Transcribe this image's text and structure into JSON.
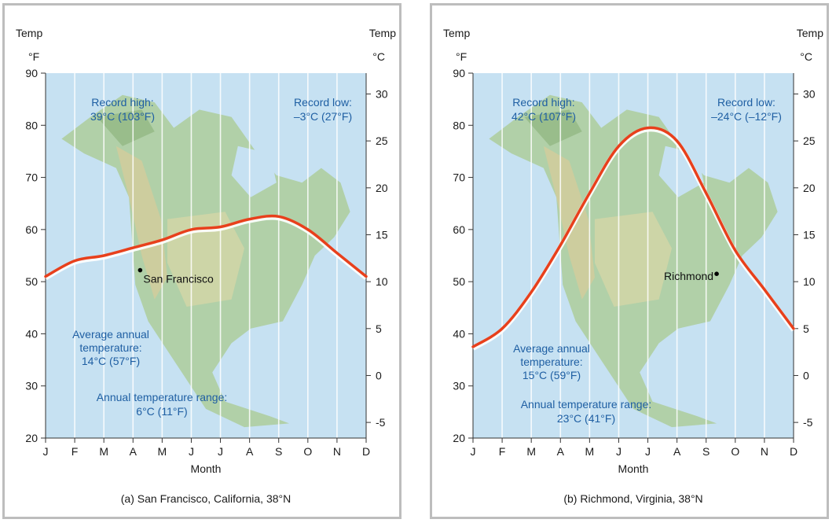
{
  "chart_data": [
    {
      "type": "line",
      "caption": "(a) San Francisco, California, 38°N",
      "xlabel": "Month",
      "categories": [
        "J",
        "F",
        "M",
        "A",
        "M",
        "J",
        "J",
        "A",
        "S",
        "O",
        "N",
        "D"
      ],
      "ylabel_left": "Temp",
      "unit_left": "°F",
      "ylabel_right": "Temp",
      "unit_right": "°C",
      "ylim_f": [
        20,
        90
      ],
      "yticks_f": [
        20,
        30,
        40,
        50,
        60,
        70,
        80,
        90
      ],
      "yticks_c": [
        -5,
        0,
        5,
        10,
        15,
        20,
        25,
        30
      ],
      "series": [
        {
          "values_f": [
            51,
            54,
            55,
            56.5,
            58,
            60,
            60.5,
            62,
            62.5,
            60,
            55.5,
            51
          ]
        }
      ],
      "city": "San Francisco",
      "record_high": [
        "Record high:",
        "39°C (103°F)"
      ],
      "record_low": [
        "Record low:",
        "–3°C (27°F)"
      ],
      "average": [
        "Average annual",
        "temperature:",
        "14°C (57°F)"
      ],
      "range": [
        "Annual temperature range:",
        "6°C (11°F)"
      ]
    },
    {
      "type": "line",
      "caption": "(b) Richmond, Virginia, 38°N",
      "xlabel": "Month",
      "categories": [
        "J",
        "F",
        "M",
        "A",
        "M",
        "J",
        "J",
        "A",
        "S",
        "O",
        "N",
        "D"
      ],
      "ylabel_left": "Temp",
      "unit_left": "°F",
      "ylabel_right": "Temp",
      "unit_right": "°C",
      "ylim_f": [
        20,
        90
      ],
      "yticks_f": [
        20,
        30,
        40,
        50,
        60,
        70,
        80,
        90
      ],
      "yticks_c": [
        -5,
        0,
        5,
        10,
        15,
        20,
        25,
        30
      ],
      "series": [
        {
          "values_f": [
            37.5,
            41,
            48,
            57,
            67,
            76,
            79.5,
            77,
            67,
            56,
            48.5,
            41
          ]
        }
      ],
      "city": "Richmond",
      "record_high": [
        "Record high:",
        "42°C (107°F)"
      ],
      "record_low": [
        "Record low:",
        "–24°C (–12°F)"
      ],
      "average": [
        "Average annual",
        "temperature:",
        "15°C (59°F)"
      ],
      "range": [
        "Annual temperature range:",
        "23°C (41°F)"
      ]
    }
  ],
  "colors": {
    "plot_bg": "#c6e1f2",
    "line": "#e8401c",
    "annotation": "#1f5fa3",
    "land": "#a9c98f"
  }
}
